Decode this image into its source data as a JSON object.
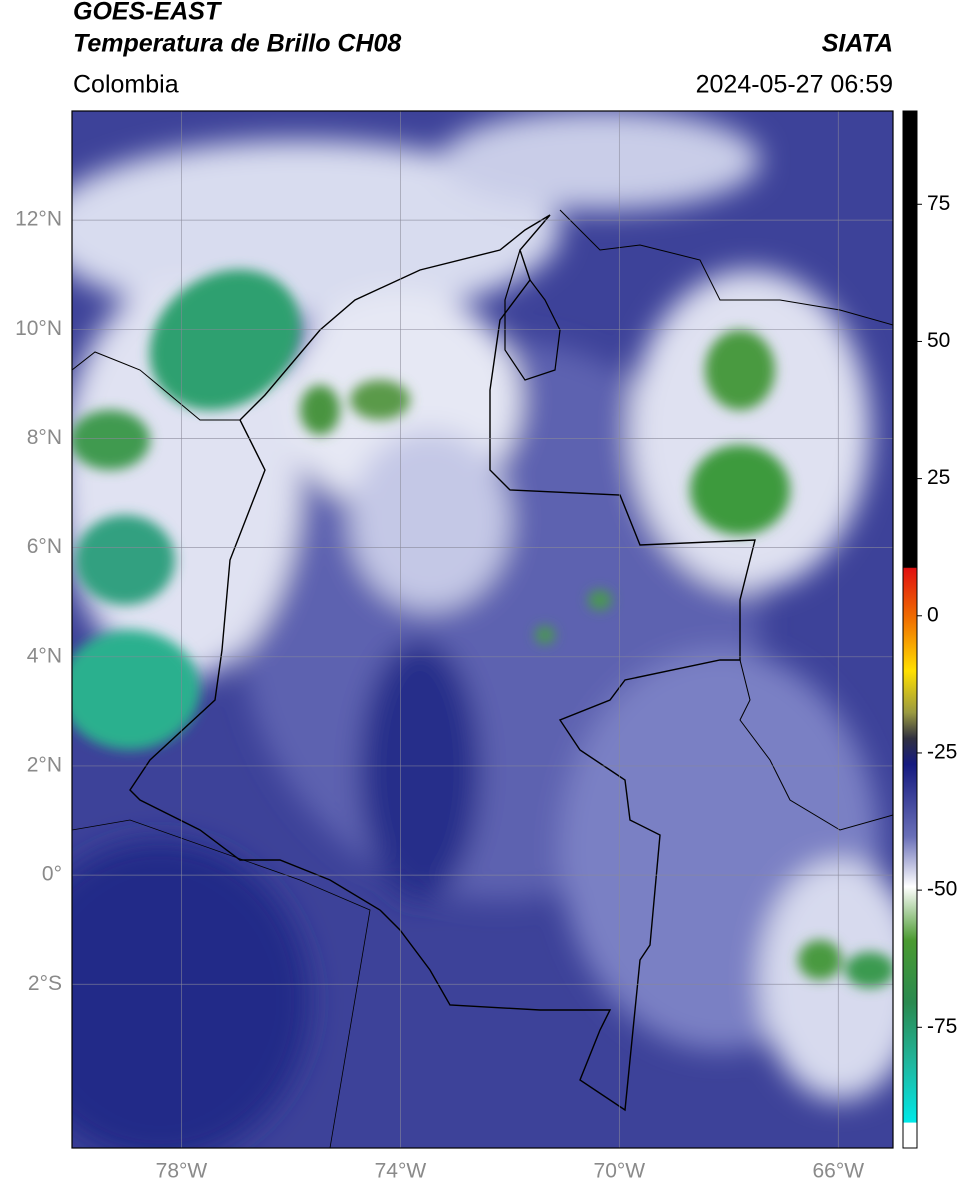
{
  "header": {
    "satellite": "GOES-EAST",
    "product": "Temperatura de Brillo CH08",
    "region": "Colombia",
    "source": "SIATA",
    "datetime": "2024-05-27 06:59"
  },
  "map": {
    "lonlim": [
      -80,
      -65
    ],
    "latlim": [
      -5,
      14
    ],
    "xticks": [
      {
        "value": -78,
        "label": "78°W"
      },
      {
        "value": -74,
        "label": "74°W"
      },
      {
        "value": -70,
        "label": "70°W"
      },
      {
        "value": -66,
        "label": "66°W"
      }
    ],
    "yticks": [
      {
        "value": 12,
        "label": "12°N"
      },
      {
        "value": 10,
        "label": "10°N"
      },
      {
        "value": 8,
        "label": "8°N"
      },
      {
        "value": 6,
        "label": "6°N"
      },
      {
        "value": 4,
        "label": "4°N"
      },
      {
        "value": 2,
        "label": "2°N"
      },
      {
        "value": 0,
        "label": "0°"
      },
      {
        "value": -2,
        "label": "2°S"
      }
    ],
    "grid": true
  },
  "colorbar": {
    "lim": [
      -97,
      92
    ],
    "ticks": [
      75,
      50,
      25,
      0,
      -25,
      -50,
      -75
    ]
  }
}
